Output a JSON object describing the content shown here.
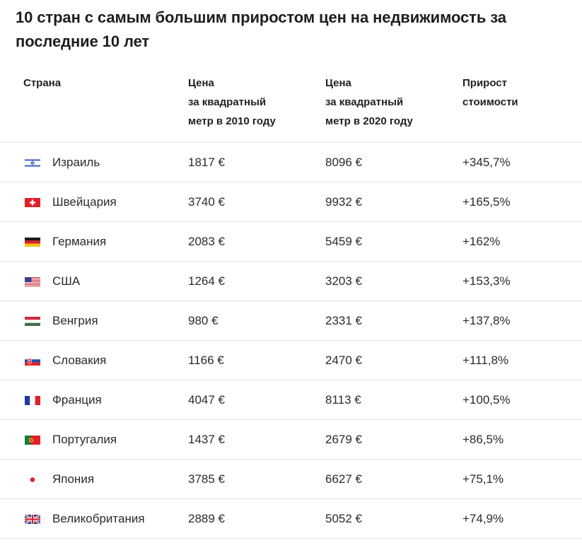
{
  "title": "10 стран с самым большим приростом цен на недвижимость за последние 10 лет",
  "table": {
    "headers": {
      "country": "Страна",
      "price_2010": "Цена\nза квадратный\nметр в 2010 году",
      "price_2020": "Цена\nза квадратный\nметр в 2020 году",
      "growth": "Прирост\nстоимости"
    },
    "rows": [
      {
        "flag": "israel-flag-icon",
        "country": "Израиль",
        "price_2010": "1817 €",
        "price_2020": "8096 €",
        "growth": "+345,7%"
      },
      {
        "flag": "switzerland-flag-icon",
        "country": "Швейцария",
        "price_2010": "3740 €",
        "price_2020": "9932 €",
        "growth": "+165,5%"
      },
      {
        "flag": "germany-flag-icon",
        "country": "Германия",
        "price_2010": "2083 €",
        "price_2020": "5459 €",
        "growth": "+162%"
      },
      {
        "flag": "usa-flag-icon",
        "country": "США",
        "price_2010": "1264 €",
        "price_2020": "3203 €",
        "growth": "+153,3%"
      },
      {
        "flag": "hungary-flag-icon",
        "country": "Венгрия",
        "price_2010": "980 €",
        "price_2020": "2331 €",
        "growth": "+137,8%"
      },
      {
        "flag": "slovakia-flag-icon",
        "country": "Словакия",
        "price_2010": "1166 €",
        "price_2020": "2470 €",
        "growth": "+111,8%"
      },
      {
        "flag": "france-flag-icon",
        "country": "Франция",
        "price_2010": "4047 €",
        "price_2020": "8113 €",
        "growth": "+100,5%"
      },
      {
        "flag": "portugal-flag-icon",
        "country": "Португалия",
        "price_2010": "1437 €",
        "price_2020": "2679 €",
        "growth": "+86,5%"
      },
      {
        "flag": "japan-flag-icon",
        "country": "Япония",
        "price_2010": "3785 €",
        "price_2020": "6627 €",
        "growth": "+75,1%"
      },
      {
        "flag": "uk-flag-icon",
        "country": "Великобритания",
        "price_2010": "2889 €",
        "price_2020": "5052 €",
        "growth": "+74,9%"
      }
    ]
  },
  "colors": {
    "text": "#2a2a30",
    "divider": "#e3e3e7"
  }
}
